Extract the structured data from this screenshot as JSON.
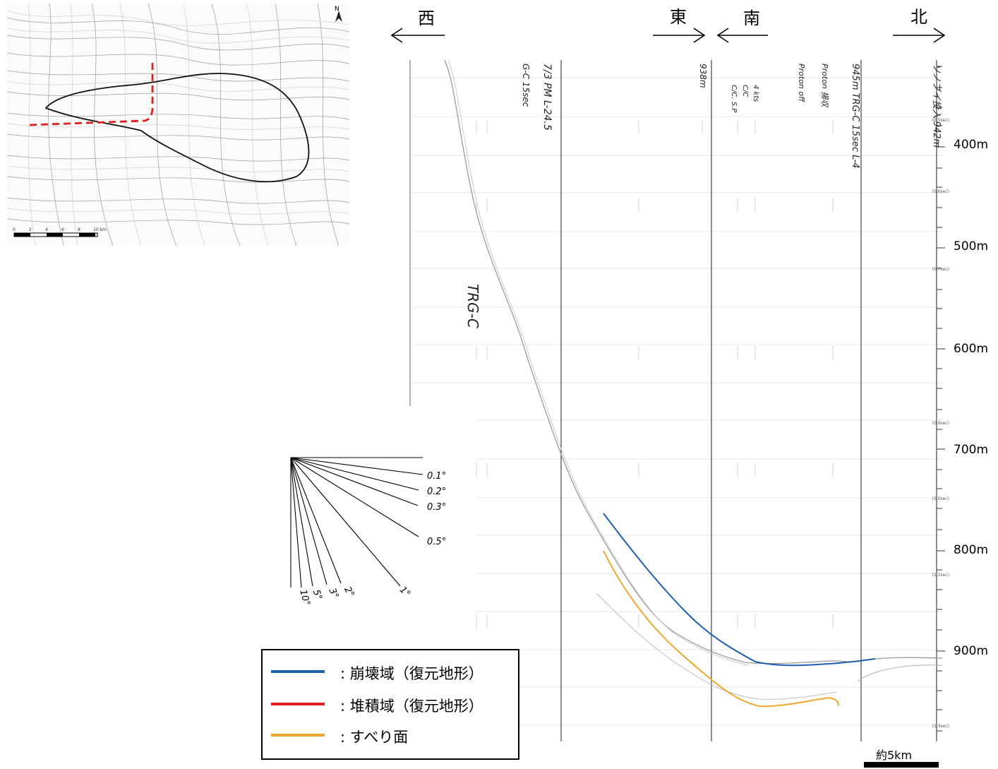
{
  "directions": {
    "west": "西",
    "east": "東",
    "south": "南",
    "north": "北"
  },
  "depth_scale": [
    {
      "label": "400m"
    },
    {
      "label": "500m"
    },
    {
      "label": "600m"
    },
    {
      "label": "700m"
    },
    {
      "label": "800m"
    },
    {
      "label": "900m"
    }
  ],
  "time_ticks": [
    {
      "label": "(0.5sec)"
    },
    {
      "label": "(0.6sec)"
    },
    {
      "label": "(0.7sec)"
    },
    {
      "label": "(0.9sec)"
    },
    {
      "label": "(1.0sec)"
    },
    {
      "label": "(1.1sec)"
    },
    {
      "label": "(1.3sec)"
    }
  ],
  "annotations": {
    "line1": "7/3 PM  L-24.5",
    "line1b": "G-C 15sec",
    "line2": "938m",
    "line3a": "4 kts",
    "line3b": "C/C",
    "line3c": "C/C. S.P",
    "line4a": "945m  TRG-C 15sec  L-4",
    "line4b": "Proton 揚収",
    "line4c": "Proton off",
    "line5": "ソノブイ投入  942m",
    "profile_name": "TRG-C"
  },
  "map": {
    "north_label": "N",
    "scale_ticks": [
      "0",
      "2",
      "4",
      "6",
      "8",
      "10 km"
    ]
  },
  "angle_fan": [
    "0.1°",
    "0.2°",
    "0.3°",
    "0.5°",
    "1°",
    "2°",
    "3°",
    "5°",
    "10°"
  ],
  "scale_bar": {
    "label": "約5km"
  },
  "legend": [
    {
      "color": "#1f5fae",
      "text": ": 崩壊域（復元地形）"
    },
    {
      "color": "#e02020",
      "text": ": 堆積域（復元地形）"
    },
    {
      "color": "#f0a830",
      "text": ": すべり面"
    }
  ],
  "colors": {
    "collapse_surface": "#1f5fae",
    "deposit_surface": "#e02020",
    "slip_surface": "#f0a830"
  }
}
